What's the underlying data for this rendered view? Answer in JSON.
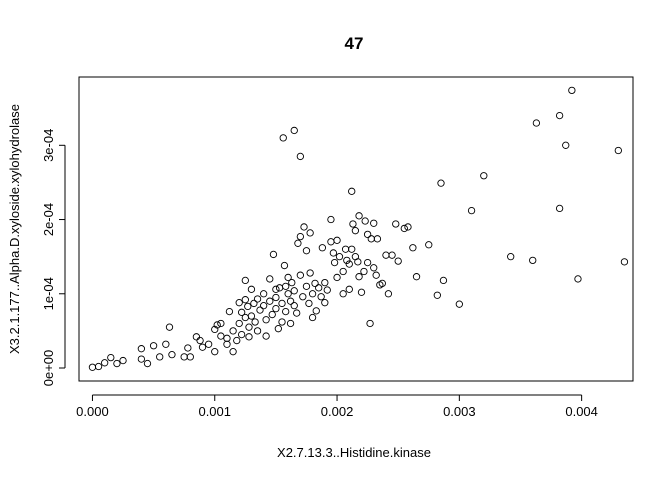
{
  "chart_data": {
    "type": "scatter",
    "title": "47",
    "xlabel": "X2.7.13.3..Histidine.kinase",
    "ylabel": "X3.2.1.177..Alpha.D.xyloside.xylohydrolase",
    "xlim": [
      -0.00011,
      0.00442
    ],
    "ylim": [
      -1.75e-05,
      0.000392
    ],
    "x_ticks": [
      0,
      0.001,
      0.002,
      0.003,
      0.004
    ],
    "x_tick_labels": [
      "0.000",
      "0.001",
      "0.002",
      "0.003",
      "0.004"
    ],
    "y_ticks": [
      0,
      0.0001,
      0.0002,
      0.0003
    ],
    "y_tick_labels": [
      "0e+00",
      "1e-04",
      "2e-04",
      "3e-04"
    ],
    "grid": false,
    "legend": "none",
    "marker": "open-circle",
    "points": [
      [
        0.0,
        1e-06
      ],
      [
        5e-05,
        2e-06
      ],
      [
        0.0001,
        7e-06
      ],
      [
        0.00015,
        1.4e-05
      ],
      [
        0.0002,
        6e-06
      ],
      [
        0.00025,
        1e-05
      ],
      [
        0.0004,
        1.2e-05
      ],
      [
        0.0004,
        2.6e-05
      ],
      [
        0.00045,
        6e-06
      ],
      [
        0.0005,
        3e-05
      ],
      [
        0.00055,
        1.5e-05
      ],
      [
        0.0006,
        3.2e-05
      ],
      [
        0.00063,
        5.5e-05
      ],
      [
        0.00065,
        1.8e-05
      ],
      [
        0.00075,
        1.5e-05
      ],
      [
        0.00078,
        2.7e-05
      ],
      [
        0.0008,
        1.5e-05
      ],
      [
        0.00085,
        4.2e-05
      ],
      [
        0.00088,
        3.7e-05
      ],
      [
        0.0009,
        2.8e-05
      ],
      [
        0.00095,
        3.2e-05
      ],
      [
        0.001,
        5.2e-05
      ],
      [
        0.001,
        2.2e-05
      ],
      [
        0.00102,
        5.8e-05
      ],
      [
        0.00105,
        6e-05
      ],
      [
        0.00105,
        4.3e-05
      ],
      [
        0.0011,
        4e-05
      ],
      [
        0.0011,
        3.2e-05
      ],
      [
        0.00112,
        7.6e-05
      ],
      [
        0.00115,
        5e-05
      ],
      [
        0.00115,
        2.2e-05
      ],
      [
        0.00118,
        3.7e-05
      ],
      [
        0.0012,
        6e-05
      ],
      [
        0.0012,
        8.8e-05
      ],
      [
        0.00122,
        7.5e-05
      ],
      [
        0.00122,
        4.5e-05
      ],
      [
        0.00125,
        0.000118
      ],
      [
        0.00125,
        9.2e-05
      ],
      [
        0.00125,
        6.8e-05
      ],
      [
        0.00127,
        8.3e-05
      ],
      [
        0.00128,
        5.5e-05
      ],
      [
        0.00128,
        4.2e-05
      ],
      [
        0.0013,
        0.000106
      ],
      [
        0.0013,
        7e-05
      ],
      [
        0.00132,
        8.7e-05
      ],
      [
        0.00133,
        6.2e-05
      ],
      [
        0.00135,
        9.3e-05
      ],
      [
        0.00135,
        5e-05
      ],
      [
        0.00137,
        7.8e-05
      ],
      [
        0.0014,
        0.0001
      ],
      [
        0.0014,
        8.4e-05
      ],
      [
        0.00142,
        6.5e-05
      ],
      [
        0.00142,
        4.3e-05
      ],
      [
        0.00145,
        0.00012
      ],
      [
        0.00145,
        9e-05
      ],
      [
        0.00147,
        7.2e-05
      ],
      [
        0.00148,
        0.000153
      ],
      [
        0.0015,
        0.000106
      ],
      [
        0.0015,
        9.5e-05
      ],
      [
        0.0015,
        8e-05
      ],
      [
        0.00152,
        5.3e-05
      ],
      [
        0.00153,
        0.000108
      ],
      [
        0.00155,
        8.7e-05
      ],
      [
        0.00155,
        6.2e-05
      ],
      [
        0.00156,
        0.00031
      ],
      [
        0.00157,
        0.000138
      ],
      [
        0.00158,
        0.00011
      ],
      [
        0.00158,
        7.6e-05
      ],
      [
        0.0016,
        0.000122
      ],
      [
        0.0016,
        0.0001
      ],
      [
        0.00162,
        9e-05
      ],
      [
        0.00162,
        6e-05
      ],
      [
        0.00163,
        0.000115
      ],
      [
        0.00165,
        0.00032
      ],
      [
        0.00165,
        0.000104
      ],
      [
        0.00165,
        8.4e-05
      ],
      [
        0.00167,
        7.4e-05
      ],
      [
        0.00168,
        0.000168
      ],
      [
        0.0017,
        0.000285
      ],
      [
        0.0017,
        0.000177
      ],
      [
        0.0017,
        0.000125
      ],
      [
        0.00172,
        9.6e-05
      ],
      [
        0.00173,
        0.00019
      ],
      [
        0.00175,
        0.000158
      ],
      [
        0.00175,
        0.00011
      ],
      [
        0.00177,
        8.7e-05
      ],
      [
        0.00178,
        0.000182
      ],
      [
        0.00178,
        0.000128
      ],
      [
        0.0018,
        0.0001
      ],
      [
        0.0018,
        6.8e-05
      ],
      [
        0.00182,
        0.000114
      ],
      [
        0.00183,
        7.7e-05
      ],
      [
        0.00185,
        0.000108
      ],
      [
        0.00187,
        9.6e-05
      ],
      [
        0.00188,
        0.000162
      ],
      [
        0.0019,
        0.000115
      ],
      [
        0.0019,
        8.8e-05
      ],
      [
        0.00192,
        0.000105
      ],
      [
        0.00195,
        0.0002
      ],
      [
        0.00195,
        0.00017
      ],
      [
        0.00197,
        0.000155
      ],
      [
        0.00198,
        0.000142
      ],
      [
        0.002,
        0.000172
      ],
      [
        0.002,
        0.000122
      ],
      [
        0.00202,
        0.00015
      ],
      [
        0.00205,
        0.00013
      ],
      [
        0.00205,
        0.0001
      ],
      [
        0.00207,
        0.00016
      ],
      [
        0.00208,
        0.000145
      ],
      [
        0.0021,
        0.00014
      ],
      [
        0.0021,
        0.000106
      ],
      [
        0.00212,
        0.000238
      ],
      [
        0.00212,
        0.00016
      ],
      [
        0.00213,
        0.000194
      ],
      [
        0.00215,
        0.000185
      ],
      [
        0.00215,
        0.00015
      ],
      [
        0.00217,
        0.000143
      ],
      [
        0.00218,
        0.000205
      ],
      [
        0.00218,
        0.000123
      ],
      [
        0.0022,
        0.000102
      ],
      [
        0.00222,
        0.00013
      ],
      [
        0.00223,
        0.000198
      ],
      [
        0.00225,
        0.00018
      ],
      [
        0.00225,
        0.000142
      ],
      [
        0.00227,
        6e-05
      ],
      [
        0.00228,
        0.000174
      ],
      [
        0.0023,
        0.000195
      ],
      [
        0.0023,
        0.000135
      ],
      [
        0.00232,
        0.000125
      ],
      [
        0.00233,
        0.000174
      ],
      [
        0.00235,
        0.000112
      ],
      [
        0.00237,
        0.000114
      ],
      [
        0.0024,
        0.000152
      ],
      [
        0.00242,
        0.0001
      ],
      [
        0.00245,
        0.000152
      ],
      [
        0.00248,
        0.000194
      ],
      [
        0.0025,
        0.000144
      ],
      [
        0.00255,
        0.000188
      ],
      [
        0.00258,
        0.00019
      ],
      [
        0.00262,
        0.000162
      ],
      [
        0.00265,
        0.000123
      ],
      [
        0.00275,
        0.000166
      ],
      [
        0.00282,
        9.8e-05
      ],
      [
        0.00285,
        0.000249
      ],
      [
        0.00287,
        0.000118
      ],
      [
        0.003,
        8.6e-05
      ],
      [
        0.0031,
        0.000212
      ],
      [
        0.0032,
        0.000259
      ],
      [
        0.00342,
        0.00015
      ],
      [
        0.0036,
        0.000145
      ],
      [
        0.00363,
        0.00033
      ],
      [
        0.00382,
        0.00034
      ],
      [
        0.00382,
        0.000215
      ],
      [
        0.00387,
        0.0003
      ],
      [
        0.00392,
        0.000374
      ],
      [
        0.00397,
        0.00012
      ],
      [
        0.0043,
        0.000293
      ],
      [
        0.00435,
        0.000143
      ]
    ]
  }
}
